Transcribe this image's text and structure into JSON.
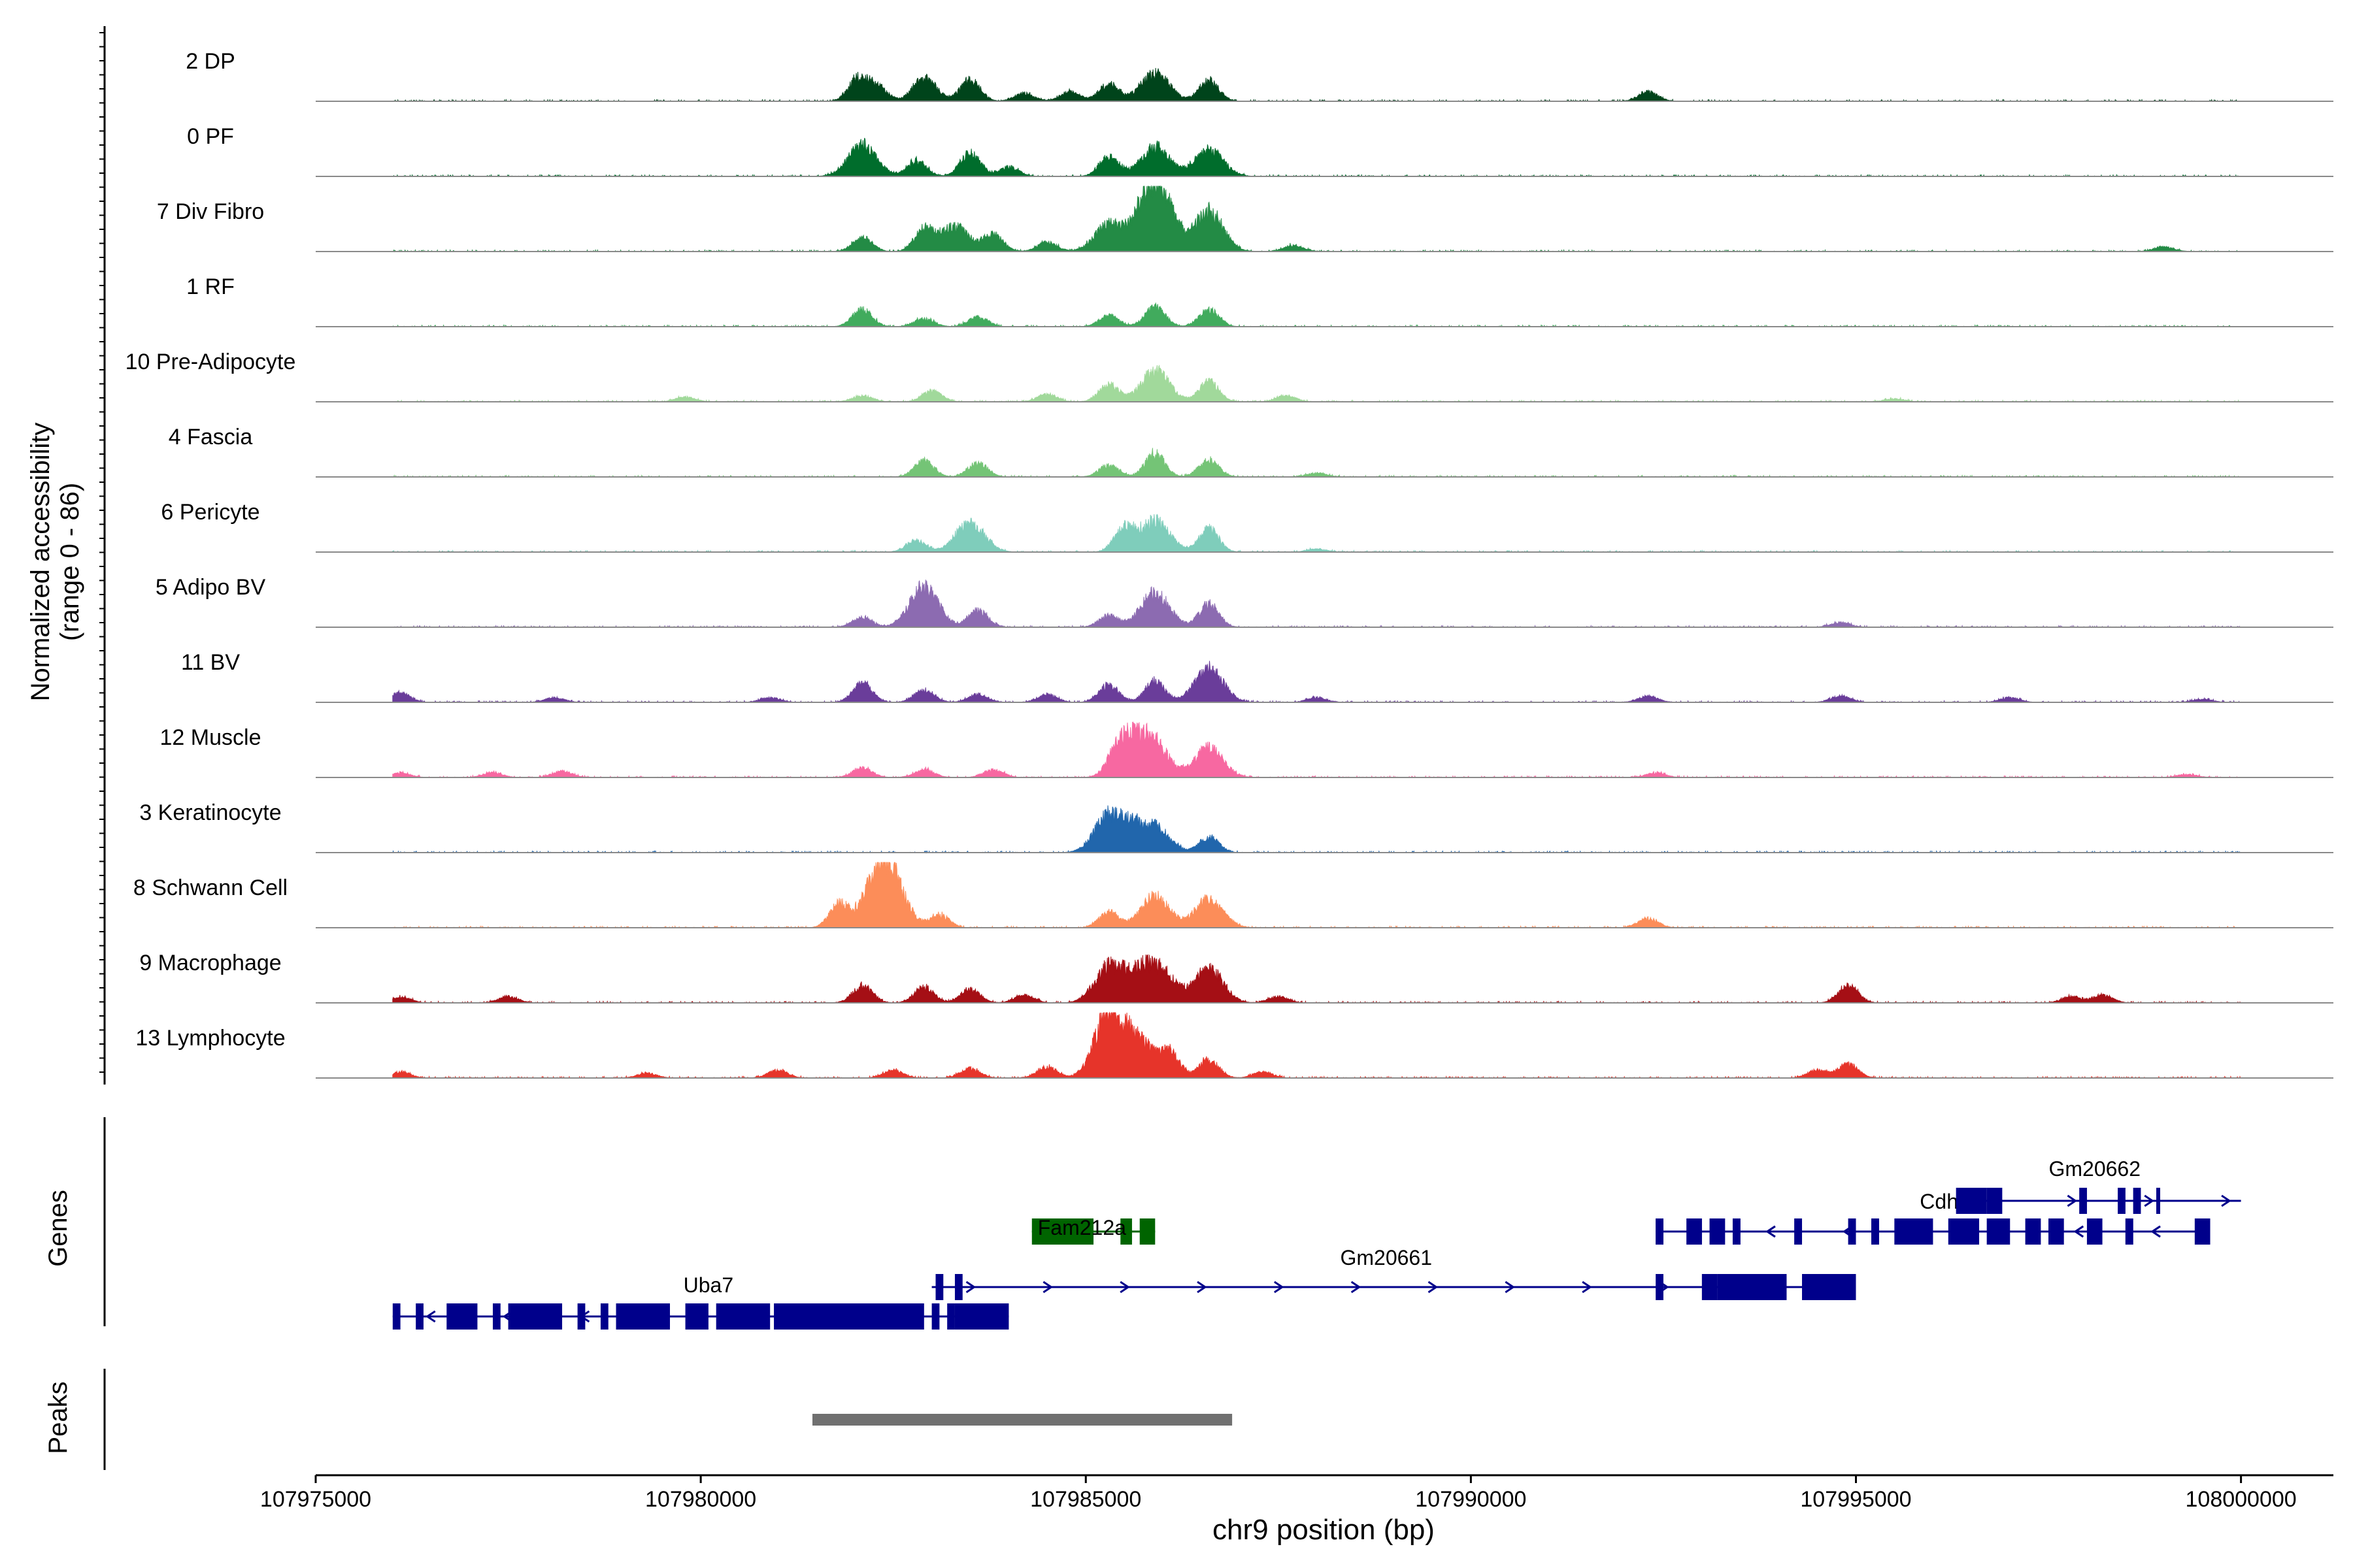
{
  "chart_data": {
    "type": "area",
    "title": "",
    "ylabel_line1": "Normalized accessibility",
    "ylabel_line2": "(range 0 - 86)",
    "xlabel": "chr9 position (bp)",
    "xlim": [
      107975000,
      108001200
    ],
    "ymax": 86,
    "xticks": [
      107975000,
      107980000,
      107985000,
      107990000,
      107995000,
      108000000
    ],
    "xtick_labels": [
      "107975000",
      "107980000",
      "107985000",
      "107990000",
      "107995000",
      "108000000"
    ],
    "genes_label": "Genes",
    "peaks_label": "Peaks",
    "tracks": [
      {
        "name": "2 DP",
        "color": "#00441b",
        "peaks": [
          [
            107982050,
            30
          ],
          [
            107982300,
            18
          ],
          [
            107982850,
            22
          ],
          [
            107983500,
            28
          ],
          [
            107984800,
            12
          ],
          [
            107985300,
            22
          ],
          [
            107985900,
            36
          ],
          [
            107986600,
            26
          ],
          [
            107992300,
            12
          ],
          [
            107984200,
            10
          ],
          [
            107983000,
            14
          ]
        ]
      },
      {
        "name": "0 PF",
        "color": "#006d2c",
        "peaks": [
          [
            107982100,
            40
          ],
          [
            107982800,
            20
          ],
          [
            107983500,
            30
          ],
          [
            107984000,
            12
          ],
          [
            107985300,
            25
          ],
          [
            107985900,
            38
          ],
          [
            107986600,
            34
          ]
        ]
      },
      {
        "name": "7 Div Fibro",
        "color": "#238b45",
        "peaks": [
          [
            107982100,
            18
          ],
          [
            107982900,
            28
          ],
          [
            107983300,
            32
          ],
          [
            107983800,
            22
          ],
          [
            107984500,
            12
          ],
          [
            107985300,
            35
          ],
          [
            107985800,
            56
          ],
          [
            107986000,
            50
          ],
          [
            107986600,
            52
          ],
          [
            107987700,
            8
          ],
          [
            107999000,
            6
          ]
        ]
      },
      {
        "name": "1 RF",
        "color": "#41ab5d",
        "peaks": [
          [
            107982100,
            22
          ],
          [
            107982900,
            10
          ],
          [
            107983600,
            12
          ],
          [
            107985300,
            14
          ],
          [
            107985900,
            26
          ],
          [
            107986600,
            22
          ]
        ]
      },
      {
        "name": "10 Pre-Adipocyte",
        "color": "#a1d99b",
        "peaks": [
          [
            107979800,
            6
          ],
          [
            107982100,
            8
          ],
          [
            107983000,
            14
          ],
          [
            107984500,
            10
          ],
          [
            107985300,
            22
          ],
          [
            107985900,
            40
          ],
          [
            107986600,
            26
          ],
          [
            107987600,
            8
          ],
          [
            107995500,
            4
          ]
        ]
      },
      {
        "name": "4 Fascia",
        "color": "#74c476",
        "peaks": [
          [
            107982900,
            20
          ],
          [
            107983600,
            18
          ],
          [
            107985300,
            15
          ],
          [
            107985900,
            30
          ],
          [
            107986600,
            22
          ],
          [
            107988000,
            5
          ]
        ]
      },
      {
        "name": "6 Pericyte",
        "color": "#7fcdbb",
        "peaks": [
          [
            107982800,
            15
          ],
          [
            107983500,
            38
          ],
          [
            107985500,
            30
          ],
          [
            107985900,
            40
          ],
          [
            107986600,
            30
          ],
          [
            107988000,
            4
          ]
        ]
      },
      {
        "name": "5 Adipo BV",
        "color": "#8c6bb1",
        "peaks": [
          [
            107982100,
            12
          ],
          [
            107982900,
            52
          ],
          [
            107983600,
            22
          ],
          [
            107985300,
            15
          ],
          [
            107985900,
            44
          ],
          [
            107986600,
            30
          ],
          [
            107994800,
            6
          ]
        ]
      },
      {
        "name": "11 BV",
        "color": "#6a3d9a",
        "peaks": [
          [
            107976100,
            12
          ],
          [
            107978100,
            6
          ],
          [
            107980900,
            6
          ],
          [
            107982100,
            24
          ],
          [
            107982900,
            16
          ],
          [
            107983600,
            10
          ],
          [
            107984500,
            10
          ],
          [
            107985300,
            22
          ],
          [
            107985900,
            28
          ],
          [
            107986600,
            44
          ],
          [
            107988000,
            6
          ],
          [
            107992300,
            8
          ],
          [
            107994800,
            8
          ],
          [
            107997000,
            6
          ],
          [
            107999500,
            4
          ]
        ]
      },
      {
        "name": "12 Muscle",
        "color": "#f768a1",
        "peaks": [
          [
            107976100,
            6
          ],
          [
            107977300,
            6
          ],
          [
            107978200,
            8
          ],
          [
            107982100,
            12
          ],
          [
            107982900,
            10
          ],
          [
            107983800,
            10
          ],
          [
            107985400,
            22
          ],
          [
            107985600,
            42
          ],
          [
            107985900,
            40
          ],
          [
            107986600,
            38
          ],
          [
            107992400,
            6
          ],
          [
            107999300,
            4
          ]
        ]
      },
      {
        "name": "3 Keratinocyte",
        "color": "#2166ac",
        "peaks": [
          [
            107985300,
            48
          ],
          [
            107985600,
            22
          ],
          [
            107985900,
            34
          ],
          [
            107986600,
            20
          ]
        ]
      },
      {
        "name": "8 Schwann Cell",
        "color": "#fc8d59",
        "peaks": [
          [
            107981800,
            30
          ],
          [
            107982300,
            60
          ],
          [
            107982500,
            44
          ],
          [
            107983100,
            16
          ],
          [
            107985300,
            20
          ],
          [
            107985900,
            40
          ],
          [
            107986600,
            36
          ],
          [
            107992300,
            12
          ]
        ]
      },
      {
        "name": "9 Macrophage",
        "color": "#a50f15",
        "peaks": [
          [
            107976100,
            8
          ],
          [
            107977500,
            8
          ],
          [
            107982100,
            22
          ],
          [
            107982900,
            20
          ],
          [
            107983500,
            18
          ],
          [
            107984200,
            10
          ],
          [
            107985300,
            46
          ],
          [
            107985700,
            34
          ],
          [
            107986000,
            36
          ],
          [
            107986600,
            44
          ],
          [
            107987500,
            8
          ],
          [
            107994900,
            22
          ],
          [
            107997800,
            8
          ],
          [
            107998200,
            10
          ]
        ]
      },
      {
        "name": "13 Lymphocyte",
        "color": "#e6342a",
        "peaks": [
          [
            107976100,
            8
          ],
          [
            107979300,
            6
          ],
          [
            107981000,
            10
          ],
          [
            107982500,
            10
          ],
          [
            107983500,
            12
          ],
          [
            107984500,
            14
          ],
          [
            107985300,
            84
          ],
          [
            107985700,
            48
          ],
          [
            107986100,
            30
          ],
          [
            107986600,
            24
          ],
          [
            107987300,
            8
          ],
          [
            107994500,
            10
          ],
          [
            107994900,
            18
          ]
        ]
      }
    ],
    "genes": [
      {
        "name": "Uba7",
        "strand": "-",
        "row": 3,
        "start": 107976000,
        "end": 107984000,
        "color": "#00008b",
        "exons": [
          [
            107976000,
            107976100
          ],
          [
            107976300,
            107976400
          ],
          [
            107976700,
            107977100
          ],
          [
            107977300,
            107977400
          ],
          [
            107977500,
            107978200
          ],
          [
            107978400,
            107978500
          ],
          [
            107978700,
            107978800
          ],
          [
            107978900,
            107979600
          ],
          [
            107979800,
            107980100
          ],
          [
            107980200,
            107980900
          ],
          [
            107980950,
            107982900
          ],
          [
            107983000,
            107983100
          ],
          [
            107983200,
            107983300
          ],
          [
            107983300,
            107984000
          ]
        ]
      },
      {
        "name": "Fam212a",
        "strand": "-",
        "row": 1,
        "start": 107984300,
        "end": 107985900,
        "color": "#006400",
        "exons": [
          [
            107984300,
            107985100
          ],
          [
            107985450,
            107985600
          ],
          [
            107985700,
            107985900
          ]
        ]
      },
      {
        "name": "Gm20661",
        "strand": "+",
        "row": 2,
        "start": 107983000,
        "end": 107995000,
        "color": "#00008b",
        "exons": [
          [
            107983050,
            107983150
          ],
          [
            107983300,
            107983400
          ],
          [
            107992400,
            107992500
          ],
          [
            107993000,
            107993200
          ],
          [
            107993200,
            107994100
          ],
          [
            107994300,
            107995000
          ]
        ]
      },
      {
        "name": "Cdhr5",
        "strand": "-",
        "row": 1,
        "start": 107992400,
        "end": 107999600,
        "color": "#00008b",
        "exons": [
          [
            107992400,
            107992500
          ],
          [
            107992800,
            107993000
          ],
          [
            107993100,
            107993300
          ],
          [
            107993400,
            107993500
          ],
          [
            107994200,
            107994300
          ],
          [
            107994900,
            107995000
          ],
          [
            107995200,
            107995300
          ],
          [
            107995500,
            107996000
          ],
          [
            107996200,
            107996600
          ],
          [
            107996700,
            107997000
          ],
          [
            107997200,
            107997400
          ],
          [
            107997500,
            107997700
          ],
          [
            107998000,
            107998200
          ],
          [
            107998500,
            107998600
          ],
          [
            107999400,
            107999600
          ]
        ]
      },
      {
        "name": "Gm20662",
        "strand": "+",
        "row": 0,
        "start": 107996300,
        "end": 108000000,
        "color": "#00008b",
        "exons": [
          [
            107996300,
            107996700
          ],
          [
            107996700,
            107996900
          ],
          [
            107997900,
            107998000
          ],
          [
            107998400,
            107998500
          ],
          [
            107998600,
            107998700
          ],
          [
            107998900,
            107998950
          ]
        ]
      }
    ],
    "peaks_regions": [
      [
        107981450,
        107986900
      ]
    ]
  }
}
